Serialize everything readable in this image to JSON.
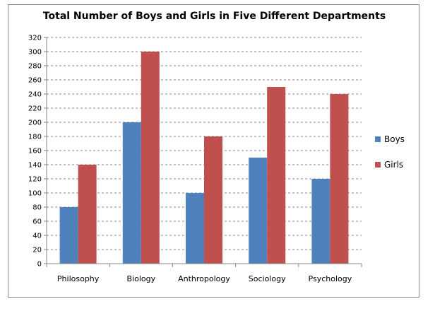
{
  "chart_data": {
    "type": "bar",
    "title": "Total Number of Boys and Girls in Five Different Departments",
    "xlabel": "",
    "ylabel": "",
    "categories": [
      "Philosophy",
      "Biology",
      "Anthropology",
      "Sociology",
      "Psychology"
    ],
    "series": [
      {
        "name": "Boys",
        "values": [
          80,
          200,
          100,
          150,
          120
        ],
        "color": "#4f81bd"
      },
      {
        "name": "Girls",
        "values": [
          140,
          300,
          180,
          250,
          240
        ],
        "color": "#c0504d"
      }
    ],
    "ylim": [
      0,
      320
    ],
    "yticks": [
      0,
      20,
      40,
      60,
      80,
      100,
      120,
      140,
      160,
      180,
      200,
      220,
      240,
      260,
      280,
      300,
      320
    ],
    "grid": true,
    "legend_position": "right"
  }
}
